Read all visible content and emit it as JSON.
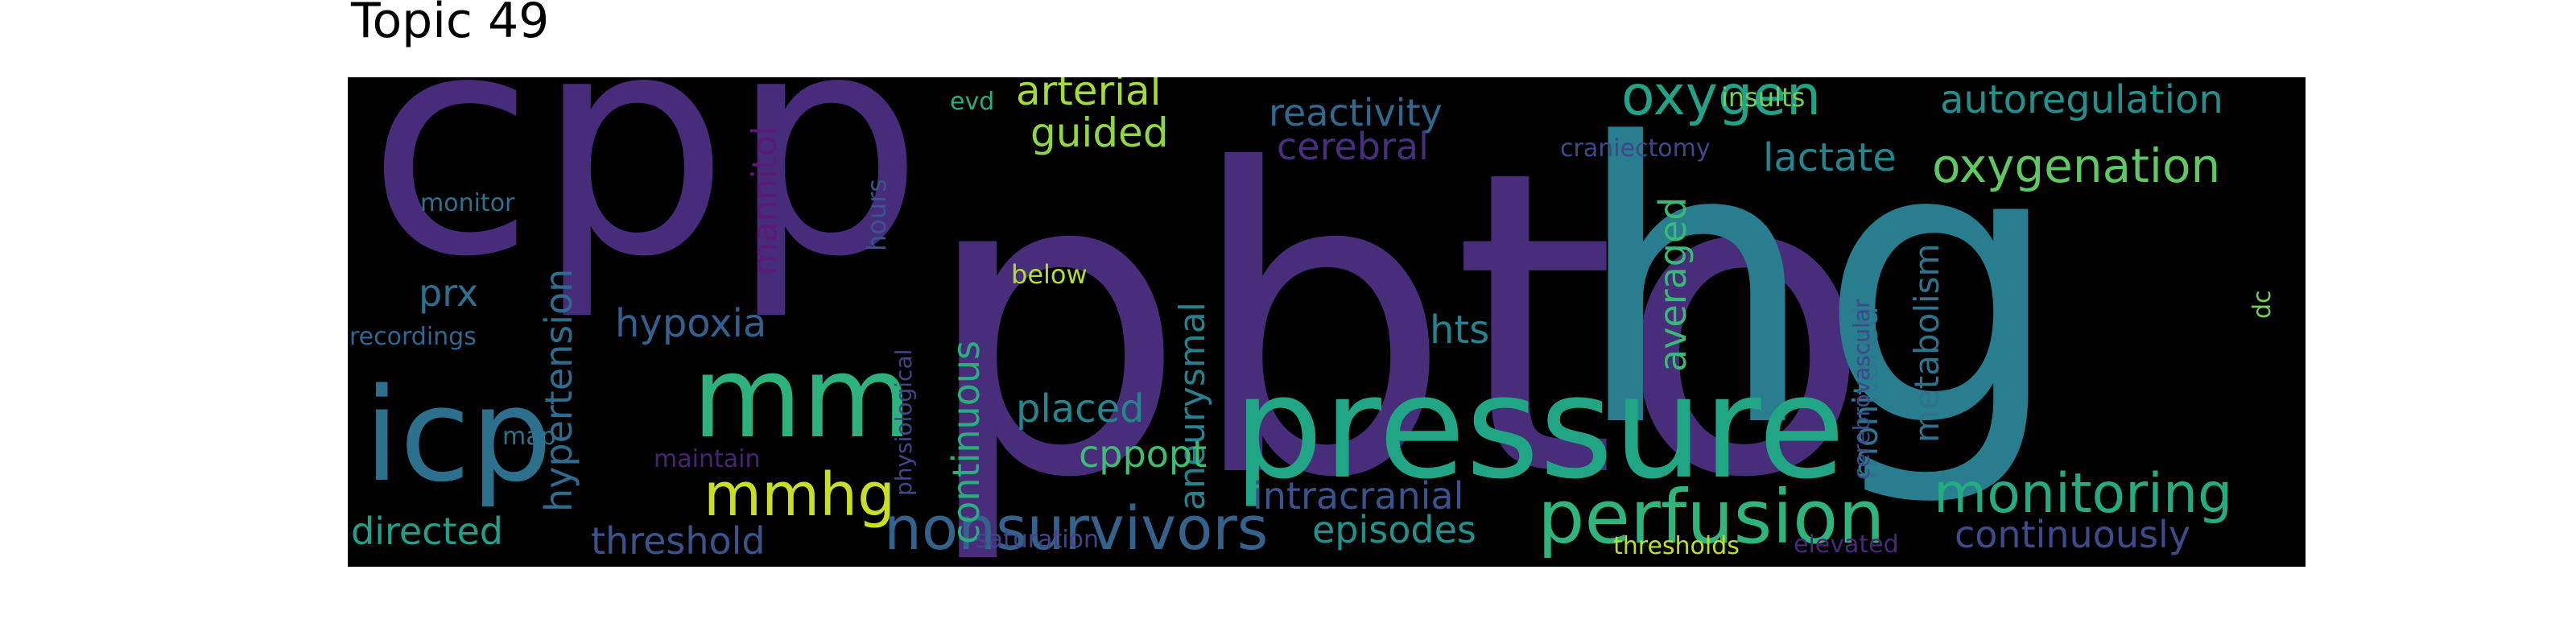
{
  "title": "Topic 49",
  "words": [
    {
      "text": "pbto",
      "color": "#482d7a"
    },
    {
      "text": "cpp",
      "color": "#462c7b"
    },
    {
      "text": "hg",
      "color": "#287d8e"
    },
    {
      "text": "pressure",
      "color": "#21a685"
    },
    {
      "text": "mm",
      "color": "#2db27d"
    },
    {
      "text": "icp",
      "color": "#2d708e"
    },
    {
      "text": "perfusion",
      "color": "#2fb47c"
    },
    {
      "text": "monitoring",
      "color": "#25ab82"
    },
    {
      "text": "nonsurvivors",
      "color": "#33638d"
    },
    {
      "text": "oxygen",
      "color": "#20a386"
    },
    {
      "text": "oxygenation",
      "color": "#5ec962"
    },
    {
      "text": "mmhg",
      "color": "#c8e020"
    },
    {
      "text": "autoregulation",
      "color": "#22908d"
    },
    {
      "text": "hypertension",
      "color": "#2f6b8e"
    },
    {
      "text": "arterial",
      "color": "#a5db36"
    },
    {
      "text": "guided",
      "color": "#90d743"
    },
    {
      "text": "reactivity",
      "color": "#31688e"
    },
    {
      "text": "cerebral",
      "color": "#472f7d"
    },
    {
      "text": "lactate",
      "color": "#25858e"
    },
    {
      "text": "averaged",
      "color": "#38b977"
    },
    {
      "text": "monitored",
      "color": "#2b758e"
    },
    {
      "text": "metabolism",
      "color": "#2c738e"
    },
    {
      "text": "continuous",
      "color": "#29af7f"
    },
    {
      "text": "aneurysmal",
      "color": "#26818e"
    },
    {
      "text": "placed",
      "color": "#25858e"
    },
    {
      "text": "cppopt",
      "color": "#3fbc73"
    },
    {
      "text": "intracranial",
      "color": "#3b528b"
    },
    {
      "text": "episodes",
      "color": "#20928c"
    },
    {
      "text": "continuously",
      "color": "#3e4a89"
    },
    {
      "text": "threshold",
      "color": "#3b528b"
    },
    {
      "text": "directed",
      "color": "#1fa088"
    },
    {
      "text": "hypoxia",
      "color": "#355f8d"
    },
    {
      "text": "mannitol",
      "color": "#5b1a78"
    },
    {
      "text": "prx",
      "color": "#2d6f8e"
    },
    {
      "text": "hts",
      "color": "#26828e"
    },
    {
      "text": "hours",
      "color": "#3b528b"
    },
    {
      "text": "physiological",
      "color": "#404688"
    },
    {
      "text": "cerebrovascular",
      "color": "#3e4989"
    },
    {
      "text": "monitor",
      "color": "#2c718e"
    },
    {
      "text": "recordings",
      "color": "#31678e"
    },
    {
      "text": "map",
      "color": "#2c728e"
    },
    {
      "text": "maintain",
      "color": "#482475"
    },
    {
      "text": "evd",
      "color": "#27ad81"
    },
    {
      "text": "insults",
      "color": "#73d056"
    },
    {
      "text": "craniectomy",
      "color": "#3f4889"
    },
    {
      "text": "below",
      "color": "#b5de2b"
    },
    {
      "text": "saturation",
      "color": "#414487"
    },
    {
      "text": "thresholds",
      "color": "#bddf26"
    },
    {
      "text": "elevated",
      "color": "#482878"
    },
    {
      "text": "dc",
      "color": "#75d054"
    }
  ]
}
